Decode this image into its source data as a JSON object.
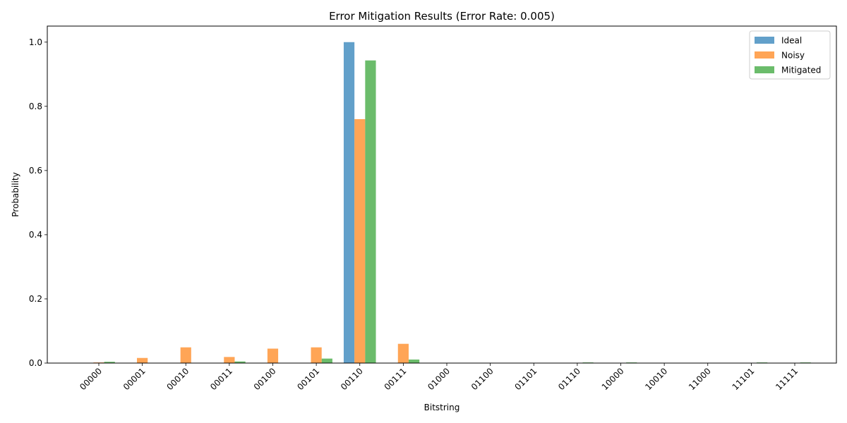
{
  "chart_data": {
    "type": "bar",
    "title": "Error Mitigation Results (Error Rate: 0.005)",
    "xlabel": "Bitstring",
    "ylabel": "Probability",
    "ylim": [
      0,
      1.05
    ],
    "yticks": [
      "0.0",
      "0.2",
      "0.4",
      "0.6",
      "0.8",
      "1.0"
    ],
    "legend_position": "top-right",
    "categories": [
      "00000",
      "00001",
      "00010",
      "00011",
      "00100",
      "00101",
      "00110",
      "00111",
      "01000",
      "01100",
      "01101",
      "01110",
      "10000",
      "10010",
      "11000",
      "11101",
      "11111"
    ],
    "series": [
      {
        "name": "Ideal",
        "color": "#1f77b4",
        "values": [
          0,
          0,
          0,
          0,
          0,
          0,
          1.0,
          0,
          0,
          0,
          0,
          0,
          0,
          0,
          0,
          0,
          0
        ]
      },
      {
        "name": "Noisy",
        "color": "#ff7f0e",
        "values": [
          0.002,
          0.016,
          0.049,
          0.019,
          0.045,
          0.049,
          0.76,
          0.06,
          0.001,
          0.001,
          0.001,
          0,
          0,
          0,
          0,
          0,
          0
        ]
      },
      {
        "name": "Mitigated",
        "color": "#2ca02c",
        "values": [
          0.004,
          0,
          0,
          0.005,
          0,
          0.014,
          0.943,
          0.011,
          0,
          0,
          0,
          0.002,
          0.002,
          0,
          0,
          0.002,
          0.002
        ]
      }
    ]
  }
}
